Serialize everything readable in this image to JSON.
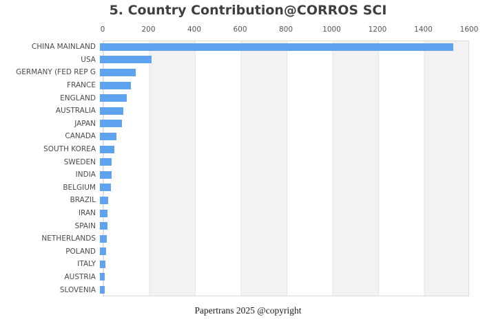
{
  "title": "5. Country Contribution@CORROS SCI",
  "footer": "Papertrans 2025 @copyright",
  "colors": {
    "bar": "#5ea3ef",
    "stripe_gray": "#f2f2f2",
    "gridline": "#e3e3e3",
    "title_text": "#3f3f3f",
    "tick_text": "#555555",
    "label_text": "#4a4a4a"
  },
  "chart_data": {
    "type": "bar",
    "orientation": "horizontal",
    "title": "5. Country Contribution@CORROS SCI",
    "xlabel": "",
    "ylabel": "",
    "xlim": [
      0,
      1600
    ],
    "xticks": [
      0,
      200,
      400,
      600,
      800,
      1000,
      1200,
      1400,
      1600
    ],
    "grid": true,
    "legend": "none",
    "categories": [
      "CHINA MAINLAND",
      "USA",
      "GERMANY (FED REP G",
      "FRANCE",
      "ENGLAND",
      "AUSTRALIA",
      "JAPAN",
      "CANADA",
      "SOUTH KOREA",
      "SWEDEN",
      "INDIA",
      "BELGIUM",
      "BRAZIL",
      "IRAN",
      "SPAIN",
      "NETHERLANDS",
      "POLAND",
      "ITALY",
      "AUSTRIA",
      "SLOVENIA"
    ],
    "values": [
      1530,
      225,
      155,
      133,
      117,
      100,
      96,
      72,
      62,
      52,
      51,
      47,
      36,
      32,
      32,
      30,
      28,
      24,
      21,
      20
    ]
  }
}
